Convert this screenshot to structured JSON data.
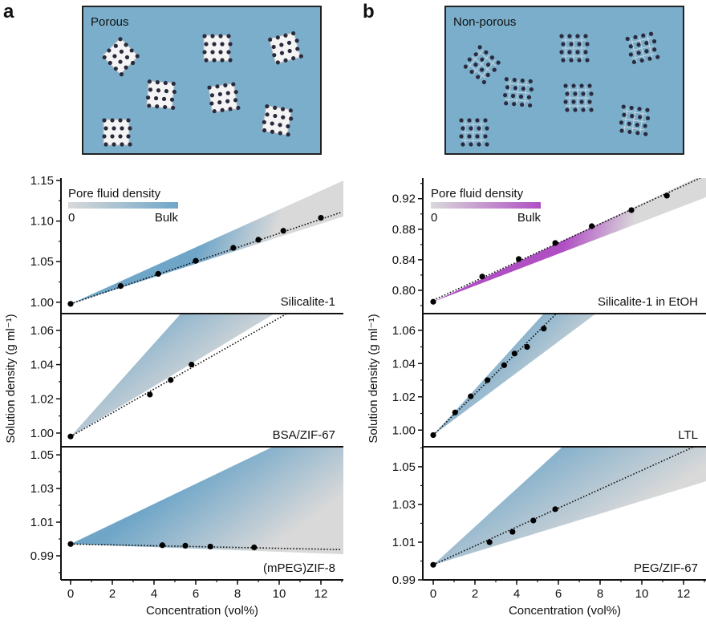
{
  "panel_letters": [
    "a",
    "b"
  ],
  "schematics": [
    {
      "label": "Porous",
      "background": "#7aaecb",
      "particle": "porous"
    },
    {
      "label": "Non-porous",
      "background": "#7aaecb",
      "particle": "non-porous"
    }
  ],
  "axes": {
    "ylabel": "Solution density (g ml⁻¹)",
    "xlabel": "Concentration (vol%)",
    "xticks": [
      0,
      2,
      4,
      6,
      8,
      10,
      12
    ],
    "xtick_labels": [
      "0",
      "2",
      "4",
      "6",
      "8",
      "10",
      "12"
    ]
  },
  "legends": [
    {
      "title": "Pore fluid density",
      "min_label": "0",
      "max_label": "Bulk",
      "colors": [
        "#d9d9d9",
        "#6fa6c8"
      ]
    },
    {
      "title": "Pore fluid density",
      "min_label": "0",
      "max_label": "Bulk",
      "colors": [
        "#d9d9d9",
        "#b04fc4"
      ]
    }
  ],
  "chart_data": [
    {
      "type": "scatter",
      "column": "a",
      "row": 0,
      "label": "Silicalite-1",
      "xlim": [
        -0.5,
        13.1
      ],
      "ylim": [
        0.986,
        1.153
      ],
      "yticks": [
        "1.00",
        "1.05",
        "1.10",
        "1.15"
      ],
      "yminor_step": 0.025,
      "points": {
        "x": [
          0,
          2.4,
          4.2,
          6.0,
          7.8,
          9.0,
          10.2,
          12.0
        ],
        "y": [
          0.998,
          1.02,
          1.035,
          1.051,
          1.067,
          1.077,
          1.088,
          1.104
        ]
      },
      "fit": {
        "x": [
          0,
          13
        ],
        "y": [
          0.998,
          1.111
        ]
      },
      "band": {
        "upper": {
          "x": [
            0,
            13
          ],
          "y": [
            0.998,
            1.149
          ]
        },
        "lower": {
          "x": [
            0,
            13
          ],
          "y": [
            0.998,
            1.105
          ]
        },
        "colors": [
          "#6fa6c8",
          "#d9d9d9"
        ]
      }
    },
    {
      "type": "scatter",
      "column": "a",
      "row": 1,
      "label": "BSA/ZIF-67",
      "xlim": [
        -0.5,
        13.1
      ],
      "ylim": [
        0.992,
        1.0698
      ],
      "yticks": [
        "1.00",
        "1.02",
        "1.04",
        "1.06"
      ],
      "yminor_step": 0.01,
      "points": {
        "x": [
          0,
          3.8,
          4.8,
          5.8
        ],
        "y": [
          0.998,
          1.0225,
          1.031,
          1.04
        ]
      },
      "fit": {
        "x": [
          0,
          10.4
        ],
        "y": [
          0.998,
          1.07
        ]
      },
      "band": {
        "upper": {
          "x": [
            0,
            5.3
          ],
          "y": [
            0.998,
            1.07
          ]
        },
        "lower": {
          "x": [
            0,
            9.8
          ],
          "y": [
            0.998,
            1.07
          ]
        },
        "colors": [
          "#6fa6c8",
          "#d9d9d9"
        ]
      }
    },
    {
      "type": "scatter",
      "column": "a",
      "row": 2,
      "label": "(mPEG)ZIF-8",
      "xlim": [
        -0.5,
        13.1
      ],
      "ylim": [
        0.9757,
        1.0548
      ],
      "yticks": [
        "0.99",
        "1.01",
        "1.03",
        "1.05"
      ],
      "yminor_step": 0.01,
      "points": {
        "x": [
          0,
          4.4,
          5.5,
          6.7,
          8.8
        ],
        "y": [
          0.997,
          0.9963,
          0.996,
          0.9955,
          0.995
        ]
      },
      "fit": {
        "x": [
          0,
          13
        ],
        "y": [
          0.997,
          0.9937
        ]
      },
      "band": {
        "upper": {
          "x": [
            0,
            9.7
          ],
          "y": [
            0.997,
            1.0548
          ]
        },
        "lower": {
          "x": [
            0,
            13
          ],
          "y": [
            0.997,
            0.991
          ]
        },
        "colors": [
          "#6fa6c8",
          "#d9d9d9"
        ]
      }
    },
    {
      "type": "scatter",
      "column": "b",
      "row": 0,
      "label": "Silicalite-1 in EtOH",
      "xlim": [
        -0.5,
        13.1
      ],
      "ylim": [
        0.7695,
        0.947
      ],
      "yticks": [
        "0.80",
        "0.84",
        "0.88",
        "0.92"
      ],
      "yminor_step": 0.02,
      "points": {
        "x": [
          0,
          2.35,
          4.1,
          5.85,
          7.6,
          9.5,
          11.2
        ],
        "y": [
          0.785,
          0.818,
          0.841,
          0.862,
          0.884,
          0.905,
          0.924
        ]
      },
      "fit": {
        "x": [
          0,
          12.8
        ],
        "y": [
          0.787,
          0.947
        ]
      },
      "band": {
        "upper": {
          "x": [
            0,
            12.6
          ],
          "y": [
            0.785,
            0.947
          ]
        },
        "lower": {
          "x": [
            0,
            13
          ],
          "y": [
            0.785,
            0.921
          ]
        },
        "colors": [
          "#b04fc4",
          "#d9d9d9"
        ]
      }
    },
    {
      "type": "scatter",
      "column": "b",
      "row": 1,
      "label": "LTL",
      "xlim": [
        -0.5,
        13.1
      ],
      "ylim": [
        0.99,
        1.07
      ],
      "yticks": [
        "1.00",
        "1.02",
        "1.04",
        "1.06"
      ],
      "yminor_step": 0.01,
      "points": {
        "x": [
          0,
          1.05,
          1.8,
          2.6,
          3.4,
          3.9,
          4.5,
          5.3
        ],
        "y": [
          0.997,
          1.0106,
          1.0203,
          1.03,
          1.039,
          1.046,
          1.05,
          1.061
        ]
      },
      "fit": {
        "x": [
          0,
          5.9
        ],
        "y": [
          0.997,
          1.07
        ]
      },
      "band": {
        "upper": {
          "x": [
            0,
            5.3
          ],
          "y": [
            0.997,
            1.07
          ]
        },
        "lower": {
          "x": [
            0,
            7.8
          ],
          "y": [
            0.997,
            1.07
          ]
        },
        "colors": [
          "#6fa6c8",
          "#d9d9d9"
        ]
      }
    },
    {
      "type": "scatter",
      "column": "b",
      "row": 2,
      "label": "PEG/ZIF-67",
      "xlim": [
        -0.5,
        13.1
      ],
      "ylim": [
        0.99,
        1.0606
      ],
      "yticks": [
        "0.99",
        "1.01",
        "1.03",
        "1.05"
      ],
      "yminor_step": 0.01,
      "points": {
        "x": [
          0,
          2.7,
          3.8,
          4.8,
          5.85
        ],
        "y": [
          0.998,
          1.01,
          1.0155,
          1.0215,
          1.0275
        ]
      },
      "fit": {
        "x": [
          0,
          12.5
        ],
        "y": [
          0.998,
          1.0606
        ]
      },
      "band": {
        "upper": {
          "x": [
            0,
            6.2
          ],
          "y": [
            0.998,
            1.0606
          ]
        },
        "lower": {
          "x": [
            0,
            13
          ],
          "y": [
            0.998,
            1.042
          ]
        },
        "colors": [
          "#6fa6c8",
          "#d9d9d9"
        ]
      }
    }
  ]
}
